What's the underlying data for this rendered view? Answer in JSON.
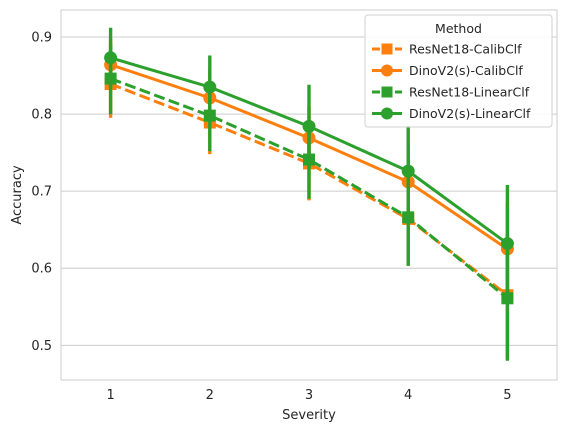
{
  "chart_data": {
    "type": "line",
    "title": "",
    "xlabel": "Severity",
    "ylabel": "Accuracy",
    "x": [
      1,
      2,
      3,
      4,
      5
    ],
    "ylim": [
      0.455,
      0.935
    ],
    "yticks": [
      0.5,
      0.6,
      0.7,
      0.8,
      0.9
    ],
    "ytick_labels": [
      "0.5",
      "0.6",
      "0.7",
      "0.8",
      "0.9"
    ],
    "grid": "horizontal",
    "legend": {
      "title": "Method",
      "placement": "top-right",
      "entries": [
        "ResNet18-CalibClf",
        "DinoV2(s)-CalibClf",
        "ResNet18-LinearClf",
        "DinoV2(s)-LinearClf"
      ]
    },
    "series": [
      {
        "name": "ResNet18-CalibClf",
        "color": "#ff7f0e",
        "linestyle": "dashed",
        "marker": "square",
        "values": [
          0.839,
          0.789,
          0.736,
          0.664,
          0.565
        ],
        "err_low": [
          0.795,
          0.748,
          0.688,
          0.603,
          0.482
        ],
        "err_high": [
          0.883,
          0.83,
          0.784,
          0.724,
          0.645
        ]
      },
      {
        "name": "DinoV2(s)-CalibClf",
        "color": "#ff7f0e",
        "linestyle": "solid",
        "marker": "circle",
        "values": [
          0.864,
          0.821,
          0.769,
          0.712,
          0.625
        ],
        "err_low": [
          0.83,
          0.784,
          0.728,
          0.664,
          0.565
        ],
        "err_high": [
          0.898,
          0.858,
          0.81,
          0.76,
          0.686
        ]
      },
      {
        "name": "ResNet18-LinearClf",
        "color": "#2ca02c",
        "linestyle": "dashed",
        "marker": "square",
        "values": [
          0.846,
          0.798,
          0.741,
          0.666,
          0.561
        ],
        "err_low": [
          0.8,
          0.752,
          0.69,
          0.603,
          0.48
        ],
        "err_high": [
          0.892,
          0.846,
          0.792,
          0.729,
          0.643
        ]
      },
      {
        "name": "DinoV2(s)-LinearClf",
        "color": "#2ca02c",
        "linestyle": "solid",
        "marker": "circle",
        "values": [
          0.873,
          0.835,
          0.784,
          0.726,
          0.632
        ],
        "err_low": [
          0.834,
          0.794,
          0.73,
          0.668,
          0.556
        ],
        "err_high": [
          0.912,
          0.876,
          0.838,
          0.785,
          0.708
        ]
      }
    ]
  }
}
